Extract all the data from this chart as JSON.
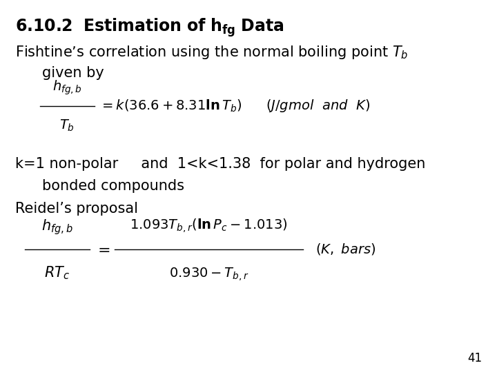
{
  "bg_color": "#ffffff",
  "page_num": "41",
  "title_fontsize": 17,
  "body_fontsize": 15,
  "eq_fontsize": 14,
  "small_fontsize": 12
}
